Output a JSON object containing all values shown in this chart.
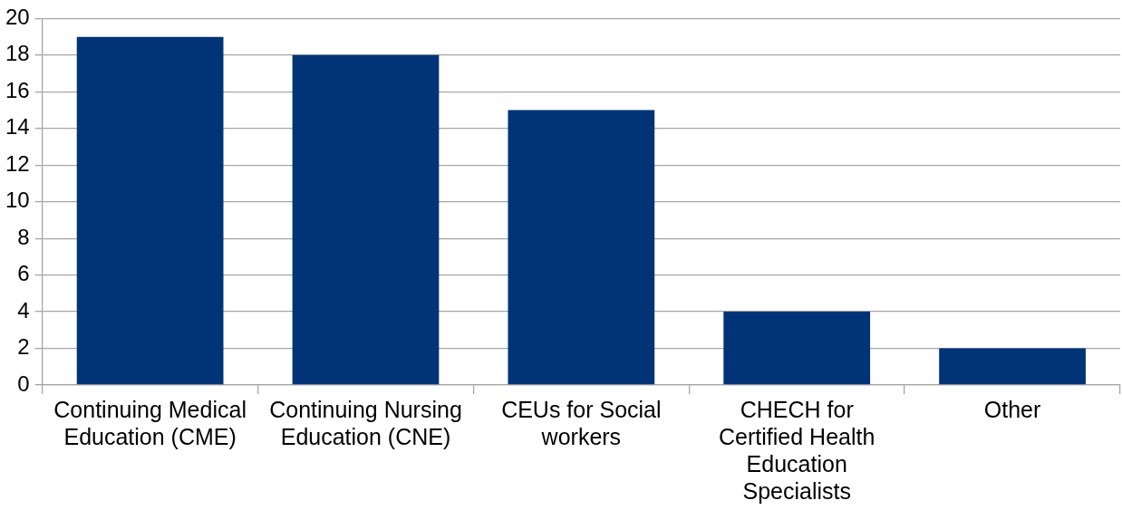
{
  "chart_data": {
    "type": "bar",
    "categories": [
      "Continuing Medical Education (CME)",
      "Continuing Nursing Education (CNE)",
      "CEUs for Social workers",
      "CHECH for Certified Health Education Specialists",
      "Other"
    ],
    "values": [
      19,
      18,
      15,
      4,
      2
    ],
    "color": "#003476",
    "ylim": [
      0,
      20
    ],
    "yticks": [
      0,
      2,
      4,
      6,
      8,
      10,
      12,
      14,
      16,
      18,
      20
    ],
    "grid": "y",
    "legend": false
  }
}
